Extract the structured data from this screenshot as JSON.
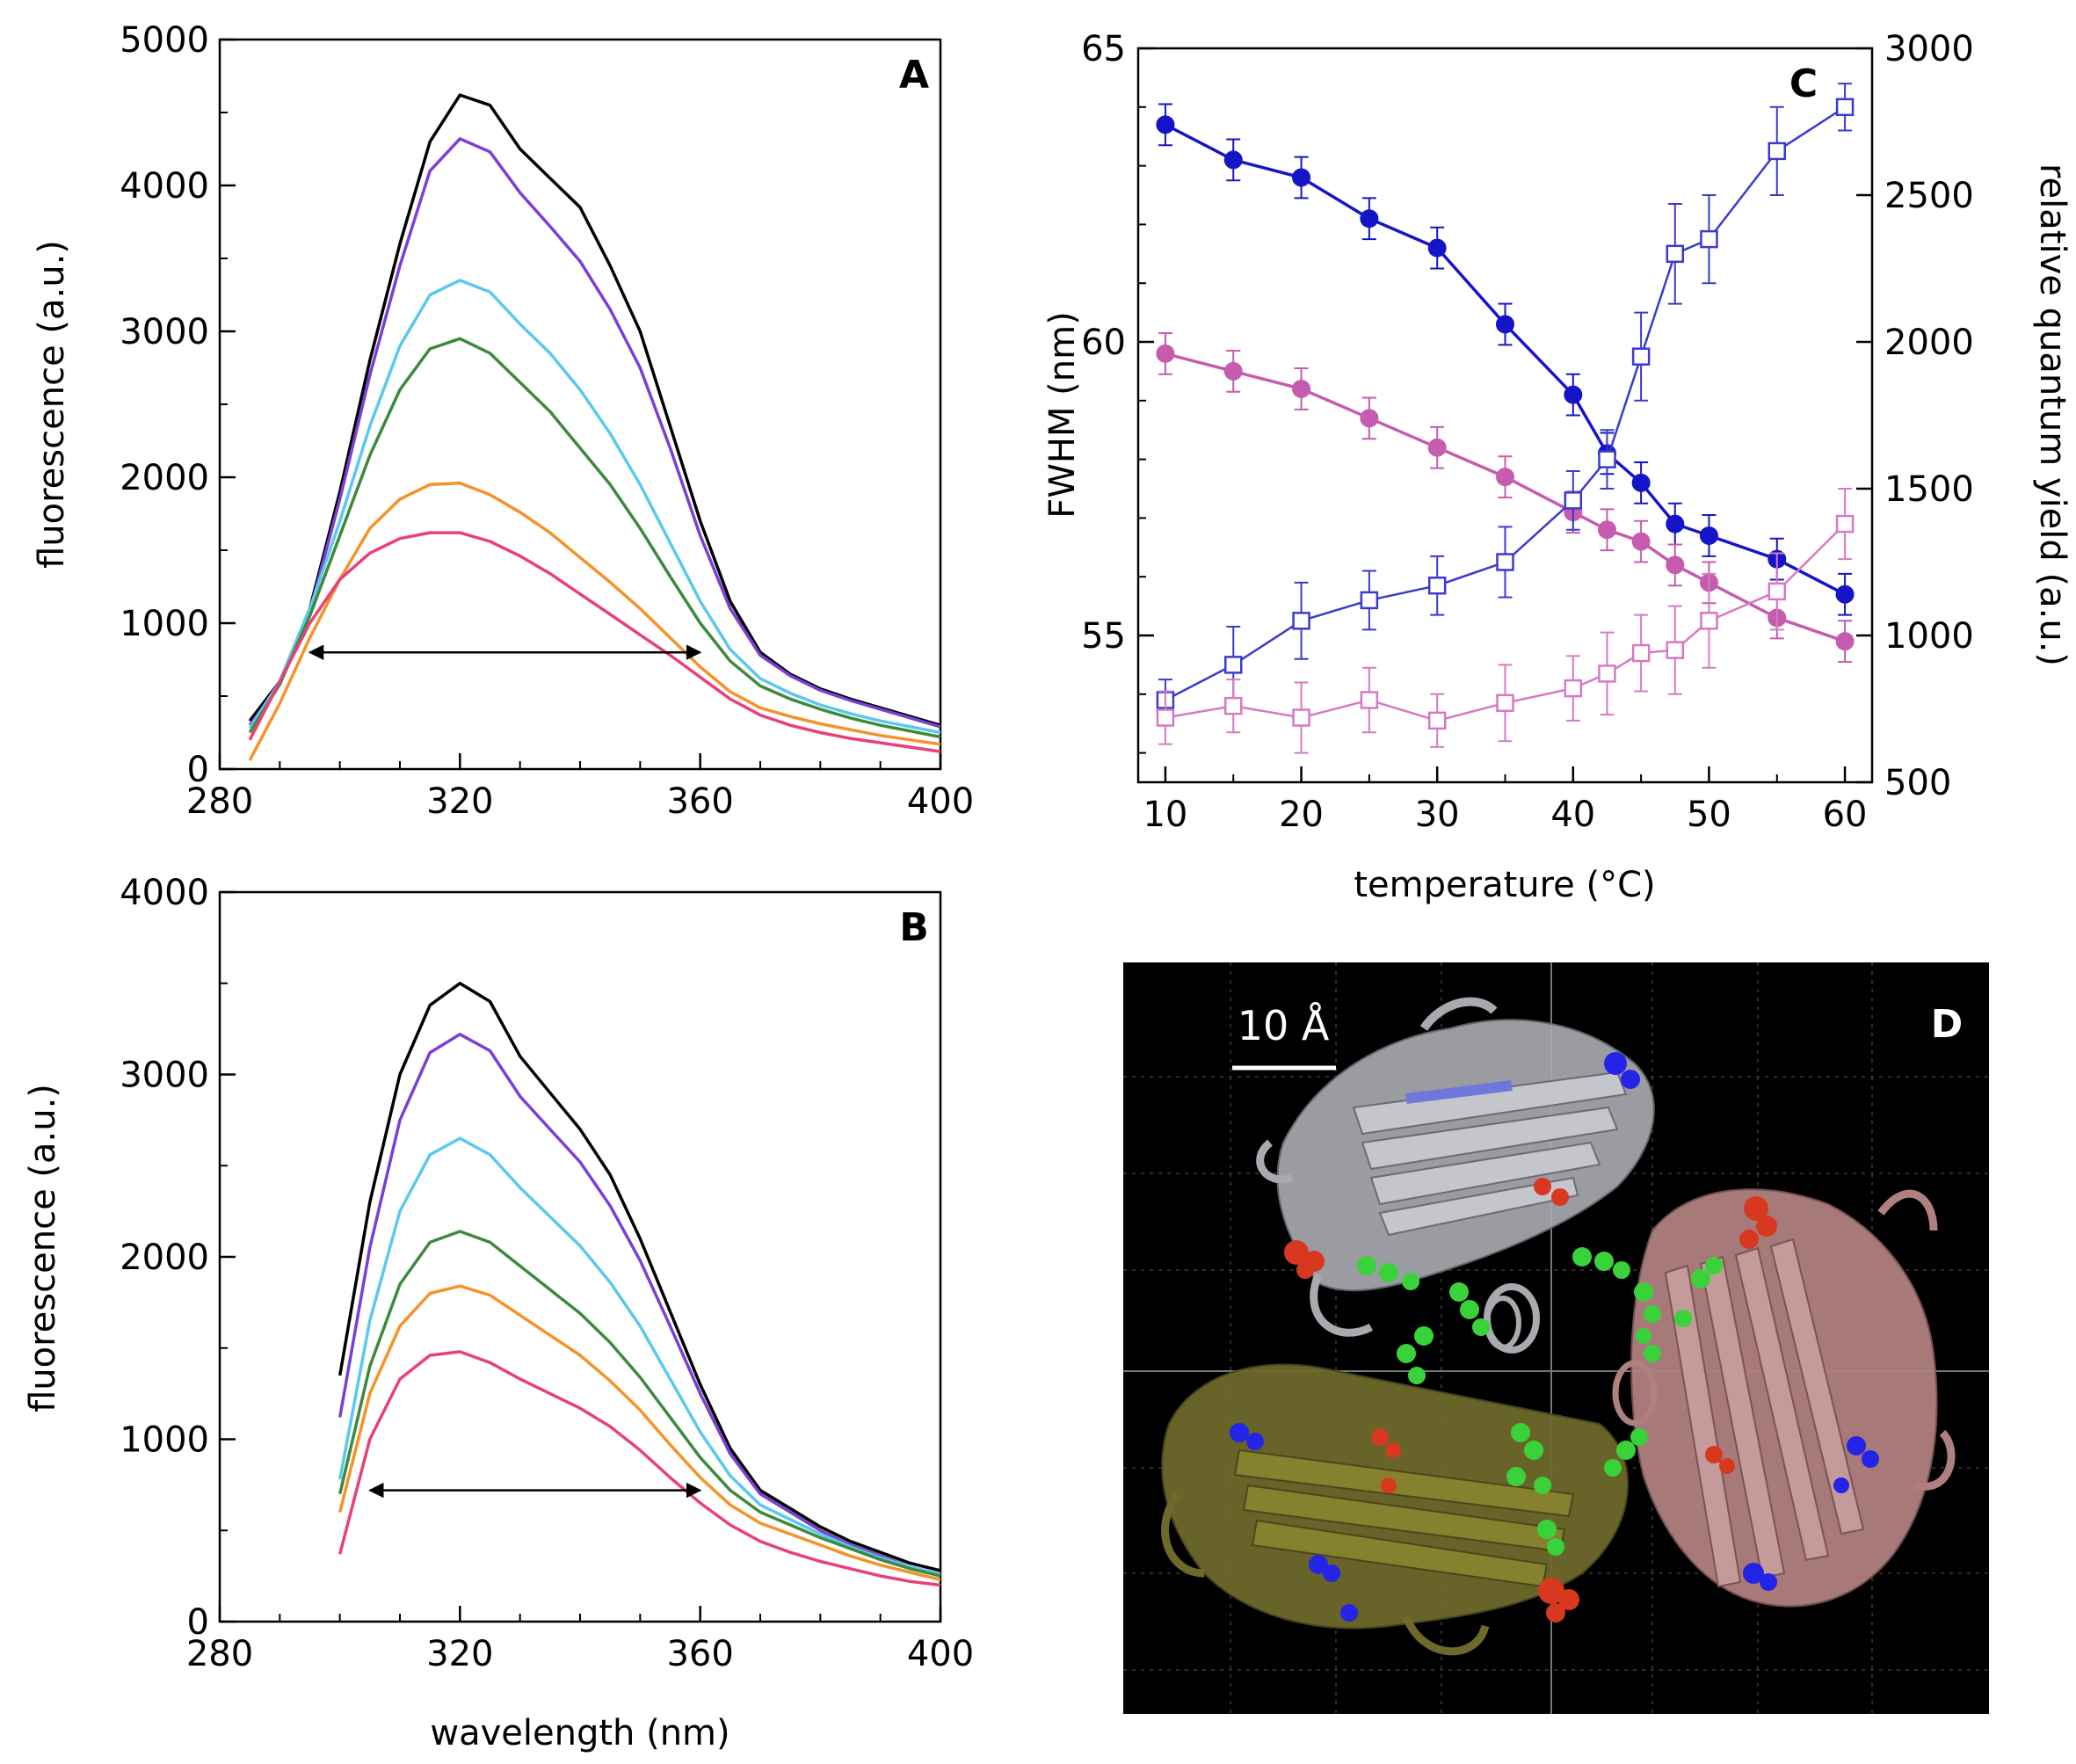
{
  "panels": {
    "A": "A",
    "B": "B",
    "C": "C",
    "D": "D"
  },
  "chart_data": [
    {
      "id": "A",
      "type": "line",
      "panel_label": "A",
      "xlabel": "",
      "ylabel": "fluorescence (a.u.)",
      "xlim": [
        280,
        400
      ],
      "ylim": [
        0,
        5000
      ],
      "xticks": [
        280,
        320,
        360,
        400
      ],
      "yticks": [
        0,
        1000,
        2000,
        3000,
        4000,
        5000
      ],
      "x": [
        285,
        290,
        295,
        300,
        305,
        310,
        315,
        320,
        325,
        330,
        335,
        340,
        345,
        350,
        355,
        360,
        365,
        370,
        375,
        380,
        385,
        390,
        395,
        400
      ],
      "series": [
        {
          "color": "#000000",
          "values": [
            330,
            600,
            1100,
            1900,
            2800,
            3600,
            4300,
            4620,
            4550,
            4250,
            4050,
            3850,
            3450,
            3000,
            2350,
            1700,
            1150,
            800,
            650,
            550,
            480,
            420,
            360,
            300
          ]
        },
        {
          "color": "#7b3fd8",
          "values": [
            300,
            580,
            1080,
            1850,
            2700,
            3450,
            4100,
            4320,
            4230,
            3950,
            3720,
            3480,
            3150,
            2750,
            2200,
            1600,
            1100,
            780,
            640,
            540,
            470,
            410,
            350,
            290
          ]
        },
        {
          "color": "#5bc8ee",
          "values": [
            280,
            600,
            1100,
            1700,
            2350,
            2900,
            3250,
            3350,
            3270,
            3050,
            2850,
            2600,
            2300,
            1950,
            1550,
            1150,
            820,
            620,
            520,
            440,
            380,
            330,
            290,
            250
          ]
        },
        {
          "color": "#3d8a3d",
          "values": [
            250,
            580,
            1050,
            1600,
            2150,
            2600,
            2880,
            2950,
            2850,
            2650,
            2450,
            2200,
            1950,
            1650,
            1320,
            1000,
            740,
            570,
            480,
            410,
            350,
            300,
            260,
            220
          ]
        },
        {
          "color": "#f5922a",
          "values": [
            60,
            450,
            900,
            1300,
            1650,
            1850,
            1950,
            1960,
            1880,
            1760,
            1620,
            1450,
            1280,
            1100,
            900,
            700,
            530,
            420,
            360,
            310,
            270,
            230,
            200,
            170
          ]
        },
        {
          "color": "#e8407a",
          "values": [
            200,
            600,
            1000,
            1300,
            1480,
            1580,
            1620,
            1620,
            1560,
            1460,
            1340,
            1200,
            1060,
            920,
            780,
            630,
            480,
            370,
            300,
            250,
            210,
            180,
            150,
            120
          ]
        }
      ],
      "arrow_x": [
        295,
        360
      ],
      "arrow_y": 800
    },
    {
      "id": "B",
      "type": "line",
      "panel_label": "B",
      "xlabel": "wavelength (nm)",
      "ylabel": "fluorescence (a.u.)",
      "xlim": [
        280,
        400
      ],
      "ylim": [
        0,
        4000
      ],
      "xticks": [
        280,
        320,
        360,
        400
      ],
      "yticks": [
        0,
        1000,
        2000,
        3000,
        4000
      ],
      "x": [
        300,
        305,
        310,
        315,
        320,
        325,
        330,
        335,
        340,
        345,
        350,
        355,
        360,
        365,
        370,
        375,
        380,
        385,
        390,
        395,
        400
      ],
      "series": [
        {
          "color": "#000000",
          "values": [
            1350,
            2300,
            3000,
            3380,
            3500,
            3400,
            3100,
            2900,
            2700,
            2450,
            2100,
            1700,
            1300,
            950,
            720,
            620,
            520,
            440,
            380,
            320,
            280
          ]
        },
        {
          "color": "#7b3fd8",
          "values": [
            1120,
            2050,
            2750,
            3120,
            3220,
            3130,
            2880,
            2700,
            2520,
            2280,
            1980,
            1620,
            1250,
            920,
            700,
            600,
            500,
            420,
            360,
            300,
            260
          ]
        },
        {
          "color": "#5bc8ee",
          "values": [
            780,
            1650,
            2250,
            2560,
            2650,
            2560,
            2380,
            2220,
            2060,
            1860,
            1620,
            1330,
            1040,
            800,
            640,
            560,
            480,
            410,
            350,
            300,
            260
          ]
        },
        {
          "color": "#3d8a3d",
          "values": [
            700,
            1400,
            1850,
            2080,
            2140,
            2080,
            1950,
            1820,
            1690,
            1530,
            1340,
            1120,
            900,
            720,
            600,
            530,
            460,
            400,
            340,
            290,
            250
          ]
        },
        {
          "color": "#f5922a",
          "values": [
            600,
            1250,
            1620,
            1800,
            1840,
            1790,
            1680,
            1570,
            1460,
            1320,
            1160,
            970,
            790,
            640,
            540,
            480,
            420,
            360,
            310,
            270,
            230
          ]
        },
        {
          "color": "#e8407a",
          "values": [
            370,
            1000,
            1330,
            1460,
            1480,
            1420,
            1330,
            1250,
            1170,
            1070,
            940,
            790,
            650,
            530,
            440,
            380,
            330,
            290,
            250,
            220,
            200
          ]
        }
      ],
      "arrow_x": [
        305,
        360
      ],
      "arrow_y": 720
    },
    {
      "id": "C",
      "type": "line",
      "panel_label": "C",
      "xlabel": "temperature (°C)",
      "ylabel": "FWHM (nm)",
      "y2label": "relative quantum yield (a.u.)",
      "xlim": [
        8,
        62
      ],
      "ylim": [
        52.5,
        65
      ],
      "y2lim": [
        500,
        3000
      ],
      "xticks": [
        10,
        20,
        30,
        40,
        50,
        60
      ],
      "yticks": [
        55,
        60,
        65
      ],
      "y2ticks": [
        500,
        1000,
        1500,
        2000,
        2500,
        3000
      ],
      "x": [
        10,
        15,
        20,
        25,
        30,
        35,
        40,
        42.5,
        45,
        47.5,
        50,
        55,
        60
      ],
      "series": [
        {
          "axis": "left",
          "marker": "filled-circle",
          "color": "#1515c8",
          "values": [
            63.7,
            63.1,
            62.8,
            62.1,
            61.6,
            60.3,
            59.1,
            58.1,
            57.6,
            56.9,
            56.7,
            56.3,
            55.7
          ],
          "errors": [
            0.35,
            0.35,
            0.35,
            0.35,
            0.35,
            0.35,
            0.35,
            0.35,
            0.35,
            0.35,
            0.35,
            0.35,
            0.35
          ]
        },
        {
          "axis": "left",
          "marker": "filled-circle",
          "color": "#c55cae",
          "values": [
            59.8,
            59.5,
            59.2,
            58.7,
            58.2,
            57.7,
            57.1,
            56.8,
            56.6,
            56.2,
            55.9,
            55.3,
            54.9
          ],
          "errors": [
            0.35,
            0.35,
            0.35,
            0.35,
            0.35,
            0.35,
            0.35,
            0.35,
            0.35,
            0.35,
            0.35,
            0.35,
            0.35
          ]
        },
        {
          "axis": "right",
          "marker": "open-square",
          "color": "#3a3ad0",
          "values": [
            780,
            900,
            1050,
            1120,
            1170,
            1250,
            1460,
            1600,
            1950,
            2300,
            2350,
            2650,
            2800
          ],
          "errors": [
            70,
            130,
            130,
            100,
            100,
            120,
            100,
            100,
            150,
            170,
            150,
            150,
            80
          ]
        },
        {
          "axis": "right",
          "marker": "open-square",
          "color": "#d57ac2",
          "values": [
            720,
            760,
            720,
            780,
            710,
            770,
            820,
            870,
            940,
            950,
            1050,
            1150,
            1380
          ],
          "errors": [
            90,
            90,
            120,
            110,
            90,
            130,
            110,
            140,
            130,
            150,
            160,
            130,
            120
          ]
        }
      ]
    }
  ],
  "molecule": {
    "scale_label": "10 Å",
    "background": "#000000",
    "subunit_colors": [
      "#a8aab0",
      "#6e6a2c",
      "#b08080"
    ],
    "residue_colors": [
      "#2424e6",
      "#d83820",
      "#3ad23a"
    ]
  }
}
